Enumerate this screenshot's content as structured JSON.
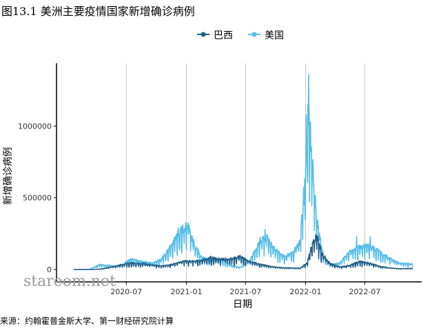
{
  "title": "图13.1 美洲主要疫情国家新增确诊病例",
  "source": "来源：约翰霍普金斯大学、第一财经研究院计算",
  "watermark": "stareom.net",
  "chart_data": {
    "type": "line",
    "xlabel": "日期",
    "ylabel": "新增确诊病例",
    "x_range": [
      "2020-01-22",
      "2022-11-25"
    ],
    "ylim": [
      -80000,
      1400000
    ],
    "yticks": [
      0,
      500000,
      1000000
    ],
    "ytick_labels": [
      "0",
      "500000",
      "1000000"
    ],
    "xticks": [
      "2020-07-01",
      "2021-01-01",
      "2021-07-01",
      "2022-01-01",
      "2022-07-01"
    ],
    "xtick_labels": [
      "2020-07",
      "2021-01",
      "2021-07",
      "2022-01",
      "2022-07"
    ],
    "grid": "vertical",
    "legend_position": "top",
    "series": [
      {
        "name": "巴西",
        "color": "#1f5f8b",
        "points": [
          [
            "2020-01-22",
            0
          ],
          [
            "2020-03-15",
            100
          ],
          [
            "2020-04-15",
            3000
          ],
          [
            "2020-05-15",
            15000
          ],
          [
            "2020-06-15",
            30000
          ],
          [
            "2020-07-15",
            40000
          ],
          [
            "2020-08-15",
            38000
          ],
          [
            "2020-09-15",
            30000
          ],
          [
            "2020-10-15",
            22000
          ],
          [
            "2020-11-15",
            30000
          ],
          [
            "2020-12-15",
            48000
          ],
          [
            "2021-01-15",
            55000
          ],
          [
            "2021-02-15",
            55000
          ],
          [
            "2021-03-15",
            75000
          ],
          [
            "2021-04-15",
            65000
          ],
          [
            "2021-05-15",
            65000
          ],
          [
            "2021-06-15",
            80000
          ],
          [
            "2021-07-15",
            50000
          ],
          [
            "2021-08-15",
            32000
          ],
          [
            "2021-09-15",
            20000
          ],
          [
            "2021-10-15",
            12000
          ],
          [
            "2021-11-15",
            10000
          ],
          [
            "2021-12-15",
            8000
          ],
          [
            "2022-01-05",
            40000
          ],
          [
            "2022-01-25",
            190000
          ],
          [
            "2022-02-05",
            200000
          ],
          [
            "2022-02-20",
            100000
          ],
          [
            "2022-03-15",
            40000
          ],
          [
            "2022-04-15",
            15000
          ],
          [
            "2022-05-15",
            25000
          ],
          [
            "2022-06-15",
            50000
          ],
          [
            "2022-07-15",
            40000
          ],
          [
            "2022-08-15",
            20000
          ],
          [
            "2022-09-15",
            10000
          ],
          [
            "2022-10-15",
            5000
          ],
          [
            "2022-11-25",
            8000
          ]
        ]
      },
      {
        "name": "美国",
        "color": "#56bde8",
        "points": [
          [
            "2020-01-22",
            0
          ],
          [
            "2020-03-10",
            1000
          ],
          [
            "2020-03-25",
            15000
          ],
          [
            "2020-04-10",
            30000
          ],
          [
            "2020-05-15",
            24000
          ],
          [
            "2020-06-15",
            25000
          ],
          [
            "2020-07-15",
            65000
          ],
          [
            "2020-08-15",
            50000
          ],
          [
            "2020-09-15",
            40000
          ],
          [
            "2020-10-15",
            60000
          ],
          [
            "2020-11-15",
            150000
          ],
          [
            "2020-12-10",
            230000
          ],
          [
            "2021-01-05",
            280000
          ],
          [
            "2021-01-20",
            180000
          ],
          [
            "2021-02-15",
            80000
          ],
          [
            "2021-03-15",
            55000
          ],
          [
            "2021-04-15",
            65000
          ],
          [
            "2021-05-15",
            30000
          ],
          [
            "2021-06-15",
            12000
          ],
          [
            "2021-07-15",
            60000
          ],
          [
            "2021-08-15",
            180000
          ],
          [
            "2021-09-05",
            200000
          ],
          [
            "2021-09-30",
            120000
          ],
          [
            "2021-10-30",
            80000
          ],
          [
            "2021-11-25",
            110000
          ],
          [
            "2021-12-15",
            170000
          ],
          [
            "2021-12-31",
            600000
          ],
          [
            "2022-01-10",
            1000000
          ],
          [
            "2022-01-20",
            700000
          ],
          [
            "2022-02-05",
            300000
          ],
          [
            "2022-02-25",
            80000
          ],
          [
            "2022-03-20",
            30000
          ],
          [
            "2022-04-15",
            40000
          ],
          [
            "2022-05-15",
            110000
          ],
          [
            "2022-06-15",
            140000
          ],
          [
            "2022-07-15",
            150000
          ],
          [
            "2022-08-15",
            110000
          ],
          [
            "2022-09-15",
            70000
          ],
          [
            "2022-10-15",
            40000
          ],
          [
            "2022-11-25",
            35000
          ]
        ],
        "spikes": [
          [
            "2020-12-07",
            290000
          ],
          [
            "2021-01-04",
            310000
          ],
          [
            "2021-08-30",
            280000
          ],
          [
            "2021-12-28",
            450000
          ],
          [
            "2022-01-03",
            1080000
          ],
          [
            "2022-01-10",
            1360000
          ],
          [
            "2022-01-18",
            860000
          ],
          [
            "2022-06-06",
            230000
          ],
          [
            "2022-07-18",
            230000
          ]
        ]
      }
    ]
  }
}
